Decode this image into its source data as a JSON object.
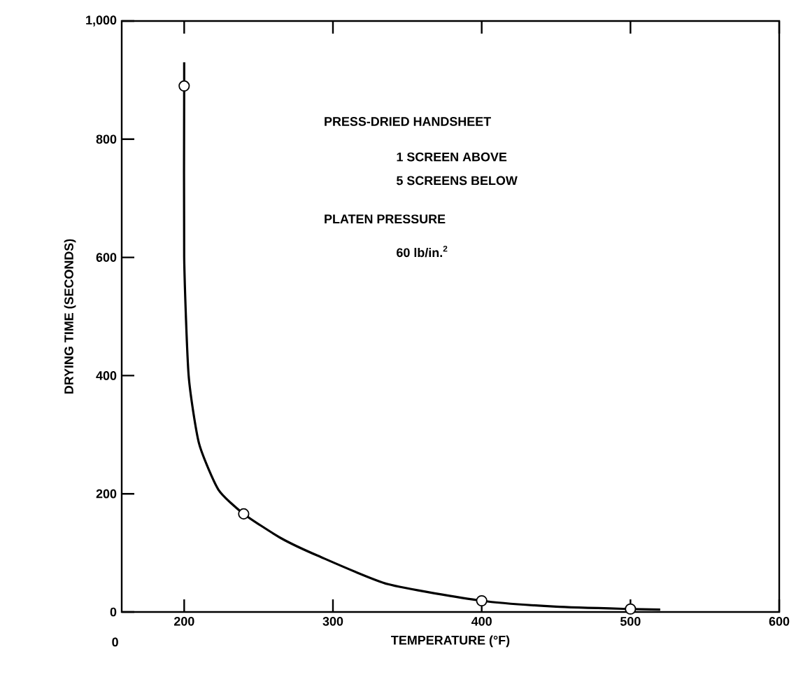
{
  "chart_data": {
    "type": "line",
    "xlabel": "TEMPERATURE (°F)",
    "ylabel": "DRYING TIME (SECONDS)",
    "xlim": [
      158,
      600
    ],
    "ylim": [
      0,
      1000
    ],
    "xticks": [
      200,
      300,
      400,
      500,
      600
    ],
    "yticks": [
      0,
      200,
      400,
      600,
      800,
      {
        "value": 1000,
        "label": "1,000"
      }
    ],
    "grid": false,
    "series": [
      {
        "color": "#000000",
        "marker": "none",
        "x": [
          200,
          200,
          200,
          203,
          210,
          223,
          240,
          265,
          290,
          337,
          400,
          450,
          500,
          520
        ],
        "values": [
          930,
          890,
          600,
          400,
          285,
          207,
          166,
          125,
          95,
          47,
          19,
          9,
          5,
          4
        ]
      },
      {
        "type": "scatter",
        "color": "#000000",
        "marker": "circle",
        "x": [
          200,
          240,
          400,
          500
        ],
        "values": [
          890,
          166,
          19,
          5
        ]
      }
    ],
    "annotations": [
      "0",
      "PRESS-DRIED HANDSHEET",
      "1 SCREEN ABOVE",
      "5 SCREENS BELOW",
      "PLATEN PRESSURE",
      "60 lb/in.$^{2}$"
    ]
  }
}
